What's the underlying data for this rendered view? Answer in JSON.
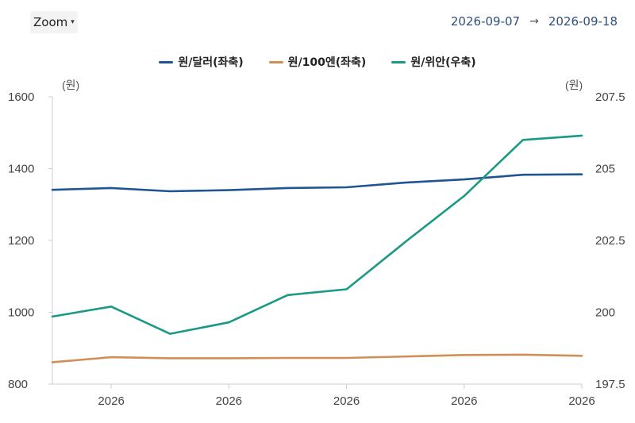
{
  "toolbar": {
    "zoom_label": "Zoom",
    "zoom_caret": "▾"
  },
  "date_range": {
    "from": "2026-09-07",
    "arrow": "→",
    "to": "2026-09-18"
  },
  "legend": [
    {
      "label": "원/달러(좌축)",
      "color": "#1f5592"
    },
    {
      "label": "원/100엔(좌축)",
      "color": "#d08f57"
    },
    {
      "label": "원/위안(우축)",
      "color": "#1a9985"
    }
  ],
  "chart_data": {
    "type": "line",
    "x": [
      "2026",
      "",
      "2026",
      "",
      "2026",
      "",
      "2026",
      "",
      "2026",
      ""
    ],
    "x_tick_labels": [
      "2026",
      "2026",
      "2026",
      "2026",
      "2026"
    ],
    "y_left": {
      "unit": "(원)",
      "range": [
        800,
        1600
      ],
      "ticks": [
        800,
        1000,
        1200,
        1400,
        1600
      ]
    },
    "y_right": {
      "unit": "(원)",
      "range": [
        197.5,
        207.5
      ],
      "ticks": [
        "197.5",
        "200",
        "202.5",
        "205",
        "207.5"
      ]
    },
    "series": [
      {
        "name": "원/달러(좌축)",
        "axis": "left",
        "color": "#1f5592",
        "values": [
          1341,
          1346,
          1337,
          1340,
          1346,
          1348,
          1361,
          1370,
          1383,
          1384
        ]
      },
      {
        "name": "원/100엔(좌축)",
        "axis": "left",
        "color": "#d08f57",
        "values": [
          861,
          875,
          872,
          872,
          873,
          873,
          877,
          881,
          882,
          879
        ]
      },
      {
        "name": "원/위안(우축)",
        "axis": "right",
        "color": "#1a9985",
        "values": [
          199.85,
          200.2,
          199.25,
          199.65,
          200.6,
          200.8,
          202.45,
          204.05,
          206.0,
          206.15
        ]
      }
    ],
    "grid": false
  }
}
